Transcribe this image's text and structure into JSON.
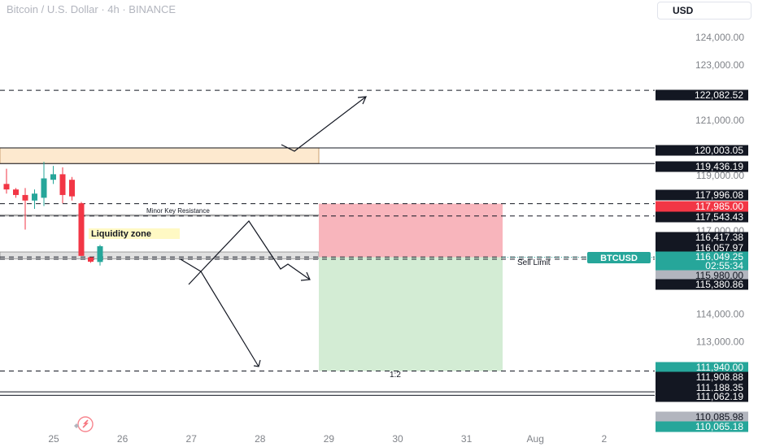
{
  "header": {
    "title": "Bitcoin / U.S. Dollar · 4h · BINANCE",
    "currency": "USD"
  },
  "colors": {
    "up": "#26a69a",
    "down": "#f23645",
    "stop_zone": "#f7a8b0",
    "target_zone": "#d3ecd4",
    "resistance_zone": "#fde9cf",
    "liquidity_label_bg": "#fff9c4"
  },
  "chart_data": {
    "type": "candlestick",
    "symbol": "BTCUSD",
    "x_ticks": [
      "25",
      "26",
      "27",
      "28",
      "29",
      "30",
      "31",
      "Aug",
      "2"
    ],
    "y_axis_ticks": [
      "124,000.00",
      "123,000.00",
      "121,000.00",
      "119,000.00",
      "117,000.00",
      "114,000.00",
      "113,000.00",
      "112,000.00"
    ],
    "y_range": [
      109700,
      124700
    ],
    "candles": [
      {
        "o": 118700,
        "h": 119250,
        "l": 118350,
        "c": 118500
      },
      {
        "o": 118500,
        "h": 118550,
        "l": 118200,
        "c": 118300
      },
      {
        "o": 118300,
        "h": 118550,
        "l": 117050,
        "c": 118100
      },
      {
        "o": 118100,
        "h": 118500,
        "l": 117800,
        "c": 118350
      },
      {
        "o": 118200,
        "h": 119500,
        "l": 117900,
        "c": 118900
      },
      {
        "o": 118850,
        "h": 119350,
        "l": 118700,
        "c": 119050
      },
      {
        "o": 119050,
        "h": 119300,
        "l": 118000,
        "c": 118300
      },
      {
        "o": 118850,
        "h": 118950,
        "l": 118100,
        "c": 118250
      },
      {
        "o": 118000,
        "h": 118050,
        "l": 116100,
        "c": 116100
      },
      {
        "o": 116050,
        "h": 116050,
        "l": 115850,
        "c": 115890
      },
      {
        "o": 115880,
        "h": 116500,
        "l": 115750,
        "c": 116450
      }
    ],
    "price_labels": [
      {
        "text": "122,082.52",
        "style": "black"
      },
      {
        "text": "120,003.05",
        "style": "black"
      },
      {
        "text": "119,436.19",
        "style": "black"
      },
      {
        "text": "117,996.08",
        "style": "black"
      },
      {
        "text": "117,985.00",
        "style": "red"
      },
      {
        "text": "117,543.43",
        "style": "black"
      },
      {
        "text": "116,417.38",
        "style": "black"
      },
      {
        "text": "116,057.97",
        "style": "black"
      },
      {
        "text": "116,049.25",
        "style": "green"
      },
      {
        "text": "02:55:34",
        "style": "green"
      },
      {
        "text": "115,980.00",
        "style": "gray"
      },
      {
        "text": "115,380.86",
        "style": "black"
      },
      {
        "text": "111,940.00",
        "style": "green"
      },
      {
        "text": "111,908.88",
        "style": "black"
      },
      {
        "text": "111,188.35",
        "style": "black"
      },
      {
        "text": "111,062.19",
        "style": "black"
      },
      {
        "text": "110,085.98",
        "style": "gray"
      },
      {
        "text": "110,065.18",
        "style": "green"
      }
    ],
    "symbol_tag": "BTCUSD",
    "annotations": {
      "minor_key_resistance": "Minor Key Resistance",
      "liquidity_zone": "Liquidity zone",
      "sell_limit": "Sell Limit",
      "risk_reward": "1:2"
    },
    "position": {
      "type": "short",
      "entry": 116049.25,
      "stop": 117985.0,
      "target": 111940.0
    }
  }
}
